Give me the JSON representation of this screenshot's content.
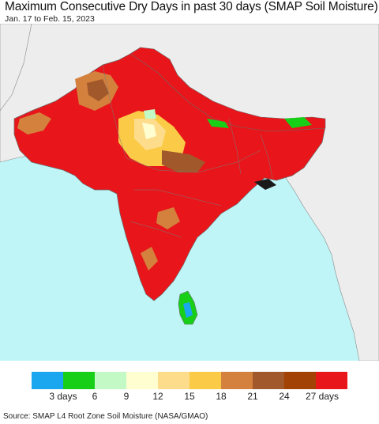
{
  "title": "Maximum Consecutive Dry Days in past 30 days (SMAP Soil Moisture)",
  "subtitle": "Jan. 17 to Feb. 15, 2023",
  "source": "Source: SMAP L4 Root Zone Soil Moisture (NASA/GMAO)",
  "colors": {
    "ocean": "#bff5f7",
    "land_outside": "#ededed",
    "border": "#8a8a8a",
    "dry_max": "#e8161a"
  },
  "legend": {
    "colors": [
      "#1aa7ef",
      "#18cf18",
      "#c2f9c4",
      "#fffed0",
      "#fddc8c",
      "#fbca46",
      "#d4813e",
      "#a1582a",
      "#a24205",
      "#e8161a"
    ],
    "ticks": [
      {
        "label": "3 days"
      },
      {
        "label": "6"
      },
      {
        "label": "9"
      },
      {
        "label": "12"
      },
      {
        "label": "15"
      },
      {
        "label": "18"
      },
      {
        "label": "21"
      },
      {
        "label": "24"
      },
      {
        "label": "27 days"
      }
    ]
  }
}
